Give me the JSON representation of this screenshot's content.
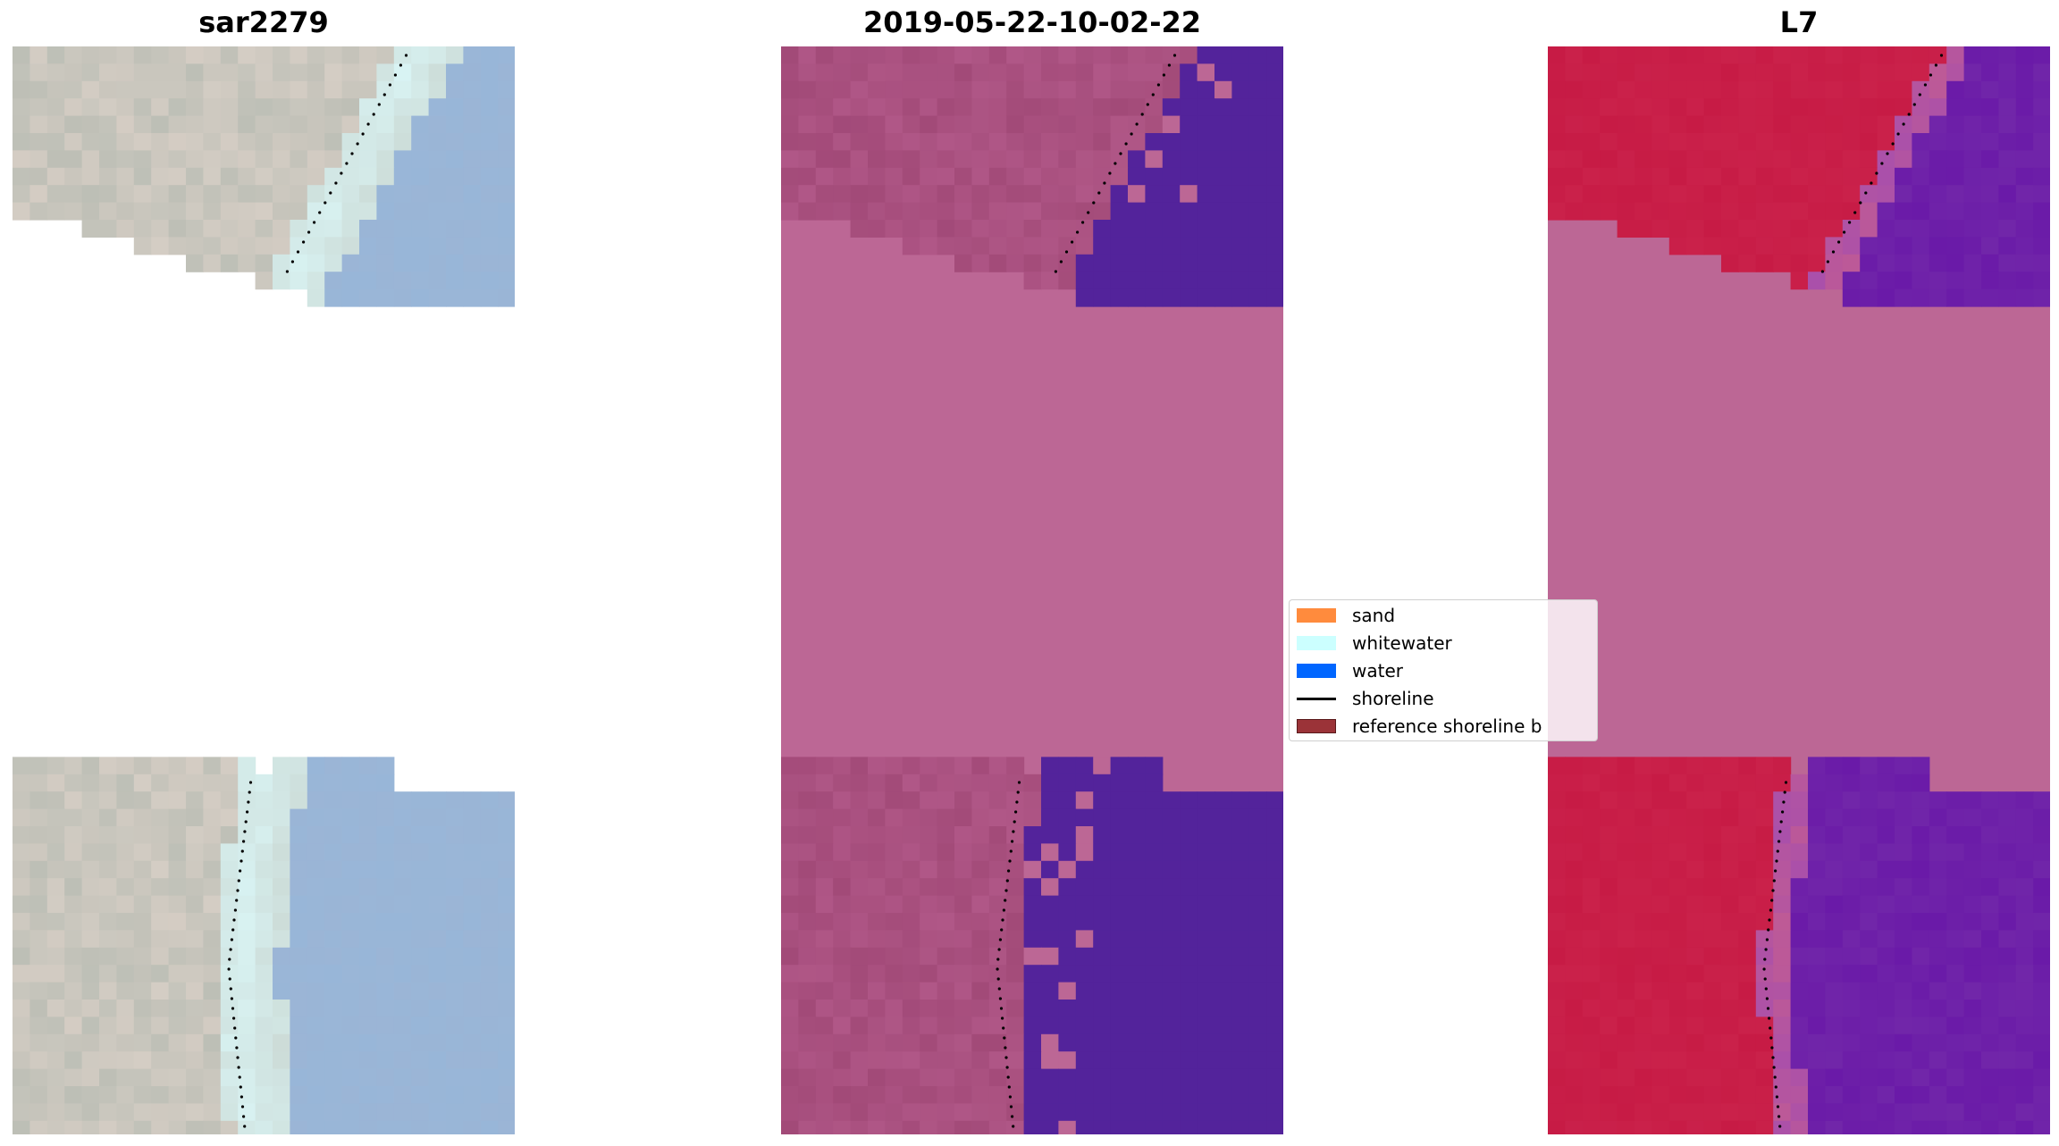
{
  "panels": [
    {
      "title": "sar2279"
    },
    {
      "title": "2019-05-22-10-02-22"
    },
    {
      "title": "L7"
    }
  ],
  "legend": {
    "items": [
      {
        "label": "sand",
        "color": "#ff8b3d"
      },
      {
        "label": "whitewater",
        "color": "#ccffff"
      },
      {
        "label": "water",
        "color": "#0066ff"
      },
      {
        "label": "shoreline",
        "color": "#000000"
      },
      {
        "label": "reference shoreline b",
        "color": "#9b3338"
      }
    ]
  },
  "colors": {
    "nodata_fill": "#bc6795",
    "rgb_sand": "#bdbfb6",
    "rgb_water": "#98b6d8",
    "rgb_whitewater": "#d9f4f4",
    "class_land": "#a24a78",
    "class_water": "#53239b",
    "index_land": "#c71b45",
    "index_water": "#6a1aa8"
  }
}
